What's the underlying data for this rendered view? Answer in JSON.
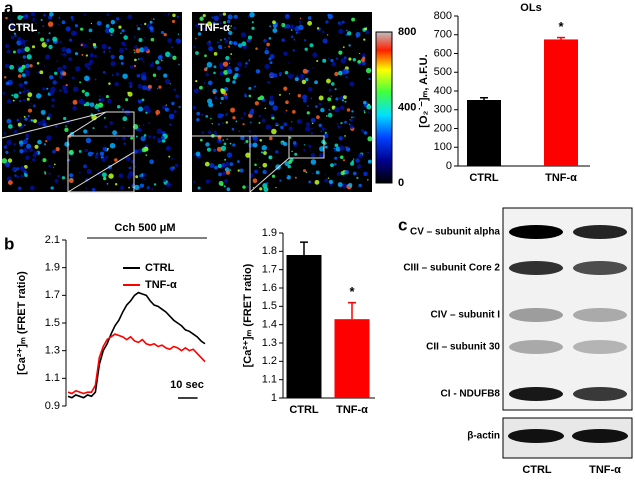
{
  "panel_labels": [
    "a",
    "b",
    "c"
  ],
  "image_labels": [
    "CTRL",
    "TNF-α"
  ],
  "colorbar": {
    "ticks": [
      0,
      400,
      800
    ],
    "lim": [
      0,
      800
    ]
  },
  "blot": {
    "bands": [
      "CV – subunit alpha",
      "CIII – subunit Core 2",
      "CIV – subunit I",
      "CII – subunit 30",
      "CI - NDUFB8"
    ],
    "loading": "β-actin",
    "lanes": [
      "CTRL",
      "TNF-α"
    ]
  },
  "chart_data": [
    {
      "type": "bar",
      "title": "OLs",
      "ylabel": "[O₂˙⁻]ₘ, A.F.U.",
      "categories": [
        "CTRL",
        "TNF-α"
      ],
      "values": [
        352,
        675
      ],
      "errors": [
        12,
        10
      ],
      "colors": [
        "#000000",
        "#ff0000"
      ],
      "ylim": [
        0,
        800
      ],
      "yticks": [
        0,
        100,
        200,
        300,
        400,
        500,
        600,
        700,
        800
      ],
      "annotation": "*"
    },
    {
      "type": "line",
      "ylabel": "[Ca²⁺]ₘ (FRET ratio)",
      "stimulus": "Cch 500 μM",
      "scale_bar": {
        "value": 10,
        "label": "10 sec"
      },
      "xlim": [
        0,
        70
      ],
      "ylim": [
        0.9,
        2.1
      ],
      "yticks": [
        0.9,
        1.1,
        1.3,
        1.5,
        1.7,
        1.9,
        2.1
      ],
      "x": [
        0,
        2,
        4,
        6,
        8,
        10,
        12,
        14,
        16,
        18,
        20,
        22,
        24,
        26,
        28,
        30,
        32,
        34,
        36,
        38,
        40,
        42,
        44,
        46,
        48,
        50,
        52,
        54,
        56,
        58,
        60,
        62,
        64,
        66,
        68,
        70
      ],
      "series": [
        {
          "name": "CTRL",
          "color": "#000000",
          "values": [
            0.97,
            0.96,
            0.98,
            0.97,
            0.96,
            0.98,
            0.97,
            1.0,
            1.2,
            1.3,
            1.35,
            1.42,
            1.48,
            1.52,
            1.58,
            1.63,
            1.66,
            1.7,
            1.72,
            1.71,
            1.7,
            1.66,
            1.63,
            1.62,
            1.6,
            1.58,
            1.55,
            1.52,
            1.5,
            1.48,
            1.45,
            1.44,
            1.42,
            1.4,
            1.37,
            1.35
          ]
        },
        {
          "name": "TNF-α",
          "color": "#ff0000",
          "values": [
            1.0,
            0.99,
            1.01,
            1.0,
            0.99,
            1.0,
            1.0,
            1.05,
            1.25,
            1.33,
            1.38,
            1.4,
            1.42,
            1.41,
            1.4,
            1.38,
            1.4,
            1.37,
            1.36,
            1.38,
            1.35,
            1.34,
            1.35,
            1.33,
            1.34,
            1.32,
            1.31,
            1.33,
            1.32,
            1.3,
            1.32,
            1.3,
            1.31,
            1.28,
            1.25,
            1.22
          ]
        }
      ]
    },
    {
      "type": "bar",
      "ylabel": "[Ca²⁺]ₘ (FRET ratio)",
      "categories": [
        "CTRL",
        "TNF-α"
      ],
      "values": [
        1.78,
        1.43
      ],
      "errors": [
        0.07,
        0.09
      ],
      "colors": [
        "#000000",
        "#ff0000"
      ],
      "ylim": [
        1,
        1.9
      ],
      "yticks": [
        1,
        1.1,
        1.2,
        1.3,
        1.4,
        1.5,
        1.6,
        1.7,
        1.8,
        1.9
      ],
      "annotation": "*"
    }
  ]
}
